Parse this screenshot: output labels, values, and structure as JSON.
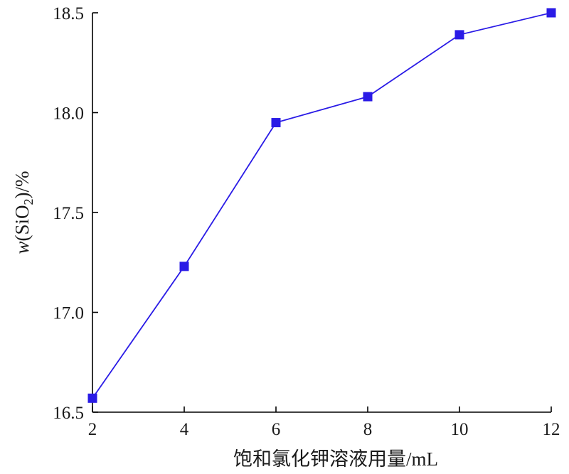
{
  "chart_data": {
    "type": "line",
    "title": "",
    "xlabel": "饱和氯化钾溶液用量/mL",
    "ylabel": {
      "prefix": "w",
      "open": "(SiO",
      "sub": "2",
      "close": ")/%"
    },
    "x": [
      2,
      4,
      6,
      8,
      10,
      12
    ],
    "series": [
      {
        "name": "",
        "values": [
          16.57,
          17.23,
          17.95,
          18.08,
          18.39,
          18.5
        ]
      }
    ],
    "xlim": [
      2,
      12
    ],
    "ylim": [
      16.5,
      18.5
    ],
    "xticks": [
      2,
      4,
      6,
      8,
      10,
      12
    ],
    "xtick_labels": [
      "2",
      "4",
      "6",
      "8",
      "10",
      "12"
    ],
    "yticks": [
      16.5,
      17.0,
      17.5,
      18.0,
      18.5
    ],
    "ytick_labels": [
      "16.5",
      "17.0",
      "17.5",
      "18.0",
      "18.5"
    ],
    "grid": false,
    "marker": "square",
    "colors": {
      "series": "#2a1be6",
      "axis": "#000000"
    }
  }
}
